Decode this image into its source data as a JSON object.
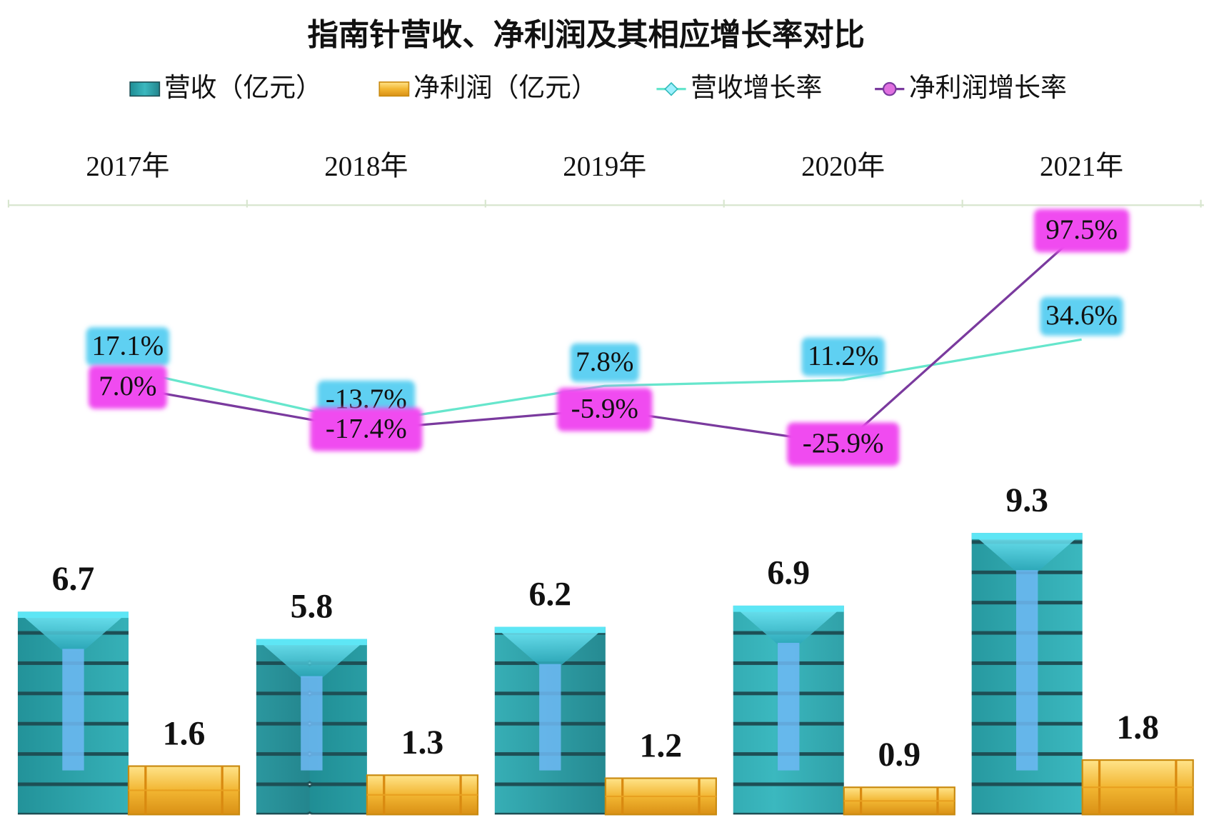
{
  "chart_data": {
    "type": "bar_line",
    "title": "指南针营收、净利润及其相应增长率对比",
    "categories": [
      "2017年",
      "2018年",
      "2019年",
      "2020年",
      "2021年"
    ],
    "ylim": [
      0,
      20
    ],
    "y2lim": [
      -240,
      110
    ],
    "series": [
      {
        "name": "营收（亿元）",
        "type": "bar",
        "color": "#2e9fa6",
        "values": [
          6.7,
          5.8,
          6.2,
          6.9,
          9.3
        ]
      },
      {
        "name": "净利润（亿元）",
        "type": "bar",
        "color": "#f2b632",
        "values": [
          1.6,
          1.3,
          1.2,
          0.9,
          1.8
        ]
      },
      {
        "name": "营收增长率",
        "type": "line",
        "axis": "y2",
        "color": "#66e6cc",
        "label_color": "#5fd0f2",
        "marker": "diamond",
        "values": [
          17.1,
          -13.7,
          7.8,
          11.2,
          34.6
        ],
        "value_labels": [
          "17.1%",
          "-13.7%",
          "7.8%",
          "11.2%",
          "34.6%"
        ]
      },
      {
        "name": "净利润增长率",
        "type": "line",
        "axis": "y2",
        "color": "#7a3a9e",
        "label_color": "#f04cf0",
        "marker": "circle",
        "values": [
          7.0,
          -17.4,
          -5.9,
          -25.9,
          97.5
        ],
        "value_labels": [
          "7.0%",
          "-17.4%",
          "-5.9%",
          "-25.9%",
          "97.5%"
        ]
      }
    ]
  }
}
